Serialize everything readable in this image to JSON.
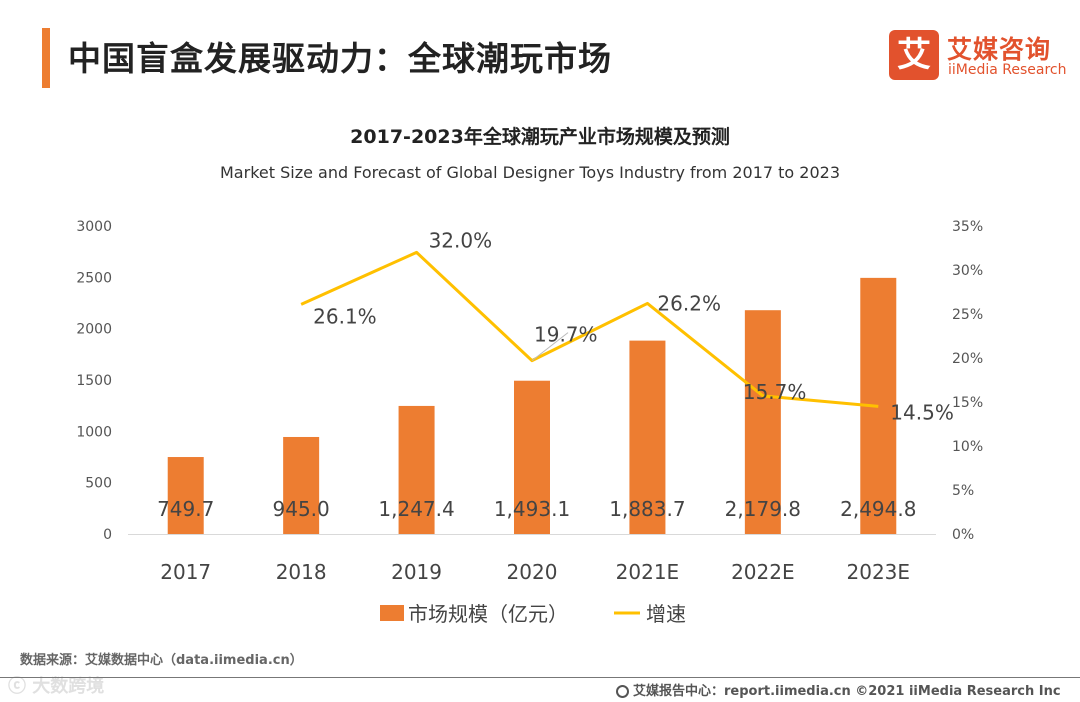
{
  "header": {
    "title": "中国盲盒发展驱动力：全球潮玩市场",
    "logo_mark": "艾",
    "logo_cn": "艾媒咨询",
    "logo_en": "iiMedia Research"
  },
  "chart_data": {
    "type": "bar",
    "title": "2017-2023年全球潮玩产业市场规模及预测",
    "subtitle": "Market Size and Forecast of Global Designer Toys Industry from 2017 to 2023",
    "categories": [
      "2017",
      "2018",
      "2019",
      "2020",
      "2021E",
      "2022E",
      "2023E"
    ],
    "series": [
      {
        "name": "市场规模（亿元）",
        "type": "bar",
        "axis": "left",
        "color": "#ED7D31",
        "values": [
          749.7,
          945.0,
          1247.4,
          1493.1,
          1883.7,
          2179.8,
          2494.8
        ],
        "labels": [
          "749.7",
          "945.0",
          "1,247.4",
          "1,493.1",
          "1,883.7",
          "2,179.8",
          "2,494.8"
        ]
      },
      {
        "name": "增速",
        "type": "line",
        "axis": "right",
        "color": "#FFC000",
        "values": [
          null,
          26.1,
          32.0,
          19.7,
          26.2,
          15.7,
          14.5
        ],
        "labels": [
          "",
          "26.1%",
          "32.0%",
          "19.7%",
          "26.2%",
          "15.7%",
          "14.5%"
        ]
      }
    ],
    "y_left": {
      "ylim": [
        0,
        3000
      ],
      "ticks": [
        "0",
        "500",
        "1000",
        "1500",
        "2000",
        "2500",
        "3000"
      ]
    },
    "y_right": {
      "ylim": [
        0,
        35
      ],
      "ticks": [
        "0%",
        "5%",
        "10%",
        "15%",
        "20%",
        "25%",
        "30%",
        "35%"
      ]
    },
    "grid": false,
    "legend": "bottom"
  },
  "footer": {
    "source": "数据来源：艾媒数据中心（data.iimedia.cn）",
    "watermark": "ⓒ 大数跨境",
    "copyright": "艾媒报告中心：report.iimedia.cn    ©2021  iiMedia Research  Inc"
  }
}
